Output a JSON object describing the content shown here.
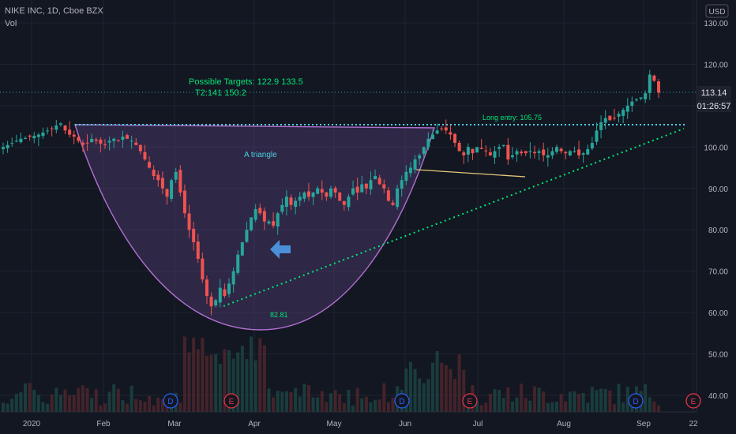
{
  "header": {
    "symbol_line": "NIKE INC, 1D, Cboe BZX",
    "volume_label": "Vol"
  },
  "currency_label": "USD",
  "price_tag": "113.14",
  "countdown_tag": "01:26:57",
  "annotations": {
    "targets_line1": "Possible Targets:   122.9     133.5",
    "targets_line2": "T2:141   150.2",
    "long_entry": "Long entry:  105.75",
    "pattern_label": "A triangle",
    "low_label": "82.81"
  },
  "event_markers": [
    "D",
    "E",
    "D",
    "E",
    "D",
    "E"
  ],
  "colors": {
    "background": "#131722",
    "up_candle": "#26a69a",
    "down_candle": "#ef5350",
    "annotation_green": "#00e676",
    "resistance_line": "#4dd0e1",
    "cup_fill": "#6a4c93",
    "arrow": "#4a90d9",
    "price_tag_bg": "#1e222d"
  },
  "chart_data": {
    "type": "candlestick",
    "title": "NIKE INC, 1D, Cboe BZX",
    "y_axis": {
      "ticks": [
        130.0,
        120.0,
        110.0,
        100.0,
        90.0,
        80.0,
        70.0,
        60.0,
        50.0,
        40.0
      ],
      "ylim": [
        36,
        133
      ]
    },
    "x_axis": {
      "ticks": [
        "2020",
        "Feb",
        "Mar",
        "Apr",
        "May",
        "Jun",
        "Jul",
        "Aug",
        "Sep",
        "22"
      ]
    },
    "grid": true,
    "resistance_level": 105.75,
    "current_price": 113.14,
    "close_series_approx": [
      100,
      100.5,
      101,
      101.5,
      102,
      102.2,
      102.5,
      102.7,
      103,
      103.5,
      104,
      104.5,
      105.2,
      105.7,
      104,
      103,
      102.5,
      101.5,
      100.5,
      101,
      102,
      101.5,
      100.8,
      100.5,
      101.5,
      102,
      101.5,
      102.5,
      102,
      101.5,
      100.5,
      99,
      97,
      95,
      93,
      92,
      90,
      88,
      92,
      94,
      89,
      84,
      80,
      77,
      73,
      68,
      64,
      61.5,
      63,
      66,
      64,
      67,
      70,
      74,
      77,
      80,
      83,
      85,
      84,
      82,
      82,
      81,
      84,
      86,
      88,
      86,
      87,
      88,
      89,
      88,
      89,
      90,
      89,
      88,
      90,
      89,
      87,
      86,
      88,
      90,
      89,
      91,
      90,
      92,
      93,
      91,
      90,
      87,
      86,
      90,
      92,
      94,
      95,
      97,
      98,
      100,
      102,
      103,
      104,
      104.5,
      104,
      103,
      101,
      99,
      98,
      100,
      98.5,
      100,
      99.5,
      99,
      98,
      99,
      100,
      100.5,
      97,
      98,
      99,
      98.5,
      98.5,
      99,
      98.5,
      99,
      98,
      98,
      99,
      100,
      99,
      98.5,
      99,
      99,
      98,
      98.5,
      99.5,
      101,
      104,
      106,
      107,
      106.5,
      107,
      108,
      109,
      110,
      111,
      111.5,
      112,
      113,
      117.5,
      116,
      113.14
    ]
  }
}
